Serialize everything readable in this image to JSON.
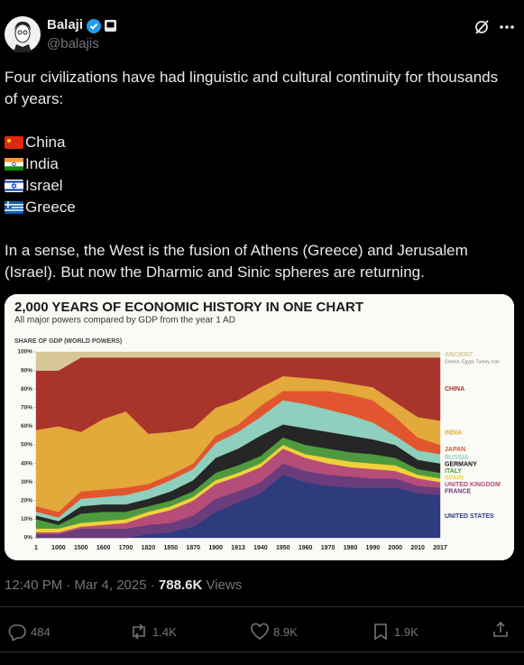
{
  "tweet": {
    "author": {
      "name": "Balaji",
      "handle": "@balajis"
    },
    "intro": "Four civilizations have had linguistic and cultural continuity for thousands of years:",
    "list": [
      "China",
      "India",
      "Israel",
      "Greece"
    ],
    "closing": "In a sense, the West is the fusion of Athens (Greece) and Jerusalem (Israel). But now the Dharmic and Sinic spheres are returning.",
    "timestamp": "12:40 PM · Mar 4, 2025 ·",
    "views": {
      "count": "788.6K",
      "label": "Views"
    },
    "stats": {
      "replies": "484",
      "reposts": "1.4K",
      "likes": "8.9K",
      "bookmarks": "1.9K"
    }
  },
  "chart_data": {
    "type": "stacked_area",
    "title": "2,000 YEARS OF ECONOMIC HISTORY IN ONE CHART",
    "subtitle": "All major powers compared by GDP from the year 1 AD",
    "y_label": "SHARE OF GDP (WORLD POWERS)",
    "annotations": [
      {
        "text": "Greece, Egypt, Turkey, Iran"
      }
    ],
    "categories": [
      "1",
      "1000",
      "1500",
      "1600",
      "1700",
      "1820",
      "1850",
      "1870",
      "1900",
      "1913",
      "1940",
      "1950",
      "1960",
      "1970",
      "1980",
      "1990",
      "2000",
      "2010",
      "2017"
    ],
    "ylim": [
      0,
      100
    ],
    "yticks": [
      {
        "value": 0,
        "label": "0%"
      },
      {
        "value": 10,
        "label": "10%"
      },
      {
        "value": 20,
        "label": "20%"
      },
      {
        "value": 30,
        "label": "30%"
      },
      {
        "value": 40,
        "label": "40%"
      },
      {
        "value": 50,
        "label": "50%"
      },
      {
        "value": 60,
        "label": "60%"
      },
      {
        "value": 70,
        "label": "70%"
      },
      {
        "value": 80,
        "label": "80%"
      },
      {
        "value": 90,
        "label": "90%"
      },
      {
        "value": 100,
        "label": "100%"
      }
    ],
    "grid": false,
    "series": [
      {
        "name": "UNITED STATES",
        "color": "#2e3b7c",
        "values": [
          0,
          0,
          0,
          0,
          0,
          2,
          3,
          6,
          14,
          19,
          24,
          34,
          30,
          28,
          27,
          27,
          27,
          24,
          23
        ]
      },
      {
        "name": "FRANCE",
        "color": "#6b3c7c",
        "values": [
          2,
          2,
          5,
          5,
          5,
          5,
          5,
          6,
          7,
          6,
          6,
          6,
          6,
          6,
          6,
          5,
          5,
          4,
          4
        ]
      },
      {
        "name": "UNITED KINGDOM",
        "color": "#b64d78",
        "values": [
          1,
          1,
          1,
          2,
          3,
          5,
          7,
          8,
          8,
          8,
          8,
          8,
          7,
          6,
          5,
          5,
          4,
          4,
          3
        ]
      },
      {
        "name": "SPAIN",
        "color": "#f1d23b",
        "values": [
          2,
          2,
          2,
          2,
          2,
          2,
          2,
          2,
          2,
          2,
          2,
          2,
          2,
          3,
          3,
          3,
          3,
          2,
          2
        ]
      },
      {
        "name": "ITALY",
        "color": "#4f9a3e",
        "values": [
          5,
          2,
          5,
          5,
          4,
          3,
          3,
          3,
          4,
          4,
          4,
          4,
          5,
          5,
          5,
          5,
          4,
          3,
          3
        ]
      },
      {
        "name": "GERMANY",
        "color": "#262626",
        "values": [
          2,
          2,
          4,
          4,
          4,
          4,
          5,
          6,
          8,
          9,
          11,
          7,
          9,
          9,
          9,
          8,
          7,
          5,
          5
        ]
      },
      {
        "name": "RUSSIA",
        "color": "#8fcfbe",
        "values": [
          2,
          2,
          4,
          4,
          5,
          5,
          6,
          6,
          8,
          9,
          10,
          13,
          13,
          12,
          11,
          9,
          5,
          5,
          5
        ]
      },
      {
        "name": "JAPAN",
        "color": "#e2562f",
        "values": [
          3,
          3,
          4,
          4,
          4,
          3,
          3,
          3,
          4,
          4,
          6,
          5,
          7,
          10,
          11,
          12,
          10,
          7,
          5
        ]
      },
      {
        "name": "INDIA",
        "color": "#e3a93b",
        "values": [
          41,
          46,
          32,
          38,
          41,
          27,
          23,
          19,
          15,
          13,
          10,
          8,
          7,
          6,
          6,
          7,
          8,
          11,
          13
        ]
      },
      {
        "name": "CHINA",
        "color": "#a8342b",
        "values": [
          32,
          30,
          40,
          33,
          29,
          41,
          40,
          38,
          27,
          23,
          16,
          10,
          11,
          12,
          14,
          16,
          24,
          32,
          34
        ]
      },
      {
        "name": "ANCIENT",
        "color": "#d8c899",
        "values": [
          10,
          10,
          3,
          3,
          3,
          3,
          3,
          3,
          3,
          3,
          3,
          3,
          3,
          3,
          3,
          3,
          3,
          3,
          3
        ]
      }
    ]
  }
}
